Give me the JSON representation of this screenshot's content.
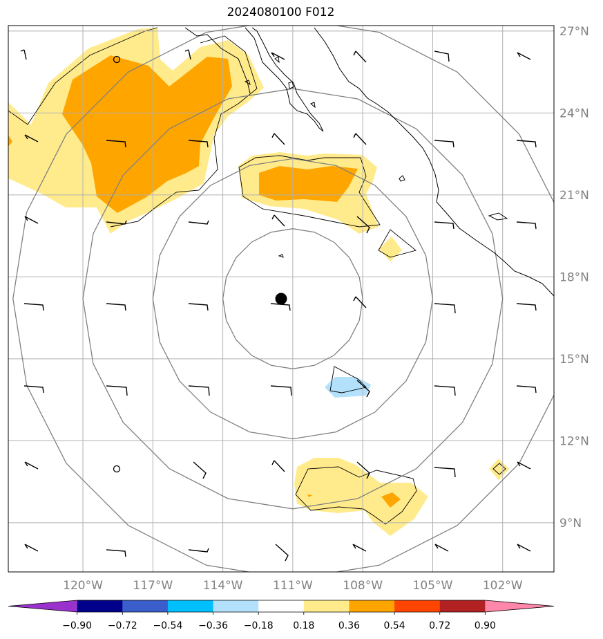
{
  "title": "2024080100 F012",
  "map": {
    "lon_range": [
      -123.2,
      -99.8
    ],
    "lat_range": [
      7.2,
      27.2
    ],
    "center": {
      "lon": -111.0,
      "lat": 17.2
    },
    "lat_labels": [
      {
        "value": 27,
        "text": "27°N"
      },
      {
        "value": 24,
        "text": "24°N"
      },
      {
        "value": 21,
        "text": "21°N"
      },
      {
        "value": 18,
        "text": "18°N"
      },
      {
        "value": 15,
        "text": "15°N"
      },
      {
        "value": 12,
        "text": "12°N"
      },
      {
        "value": 9,
        "text": "9°N"
      }
    ],
    "lon_labels": [
      {
        "value": -120,
        "text": "120°W"
      },
      {
        "value": -117,
        "text": "117°W"
      },
      {
        "value": -114,
        "text": "114°W"
      },
      {
        "value": -111,
        "text": "111°W"
      },
      {
        "value": -108,
        "text": "108°W"
      },
      {
        "value": -105,
        "text": "105°W"
      },
      {
        "value": -102,
        "text": "102°W"
      }
    ],
    "range_ring_radii_deg": [
      3,
      6,
      9,
      12
    ],
    "colors": {
      "light_yellow": "#ffeb8c",
      "orange": "#ffa500",
      "light_blue": "#b3e0fa",
      "grid": "#b0b0b0",
      "ring": "#808080"
    }
  },
  "colorbar": {
    "ticks": [
      "−0.90",
      "−0.72",
      "−0.54",
      "−0.36",
      "−0.18",
      "0.18",
      "0.36",
      "0.54",
      "0.72",
      "0.90"
    ],
    "colors": [
      "#9932cc",
      "#00008b",
      "#3a5fcd",
      "#00bfff",
      "#b3e0fa",
      "#ffffff",
      "#ffeb8c",
      "#ffa500",
      "#ff4500",
      "#b22222",
      "#ff88aa"
    ]
  }
}
